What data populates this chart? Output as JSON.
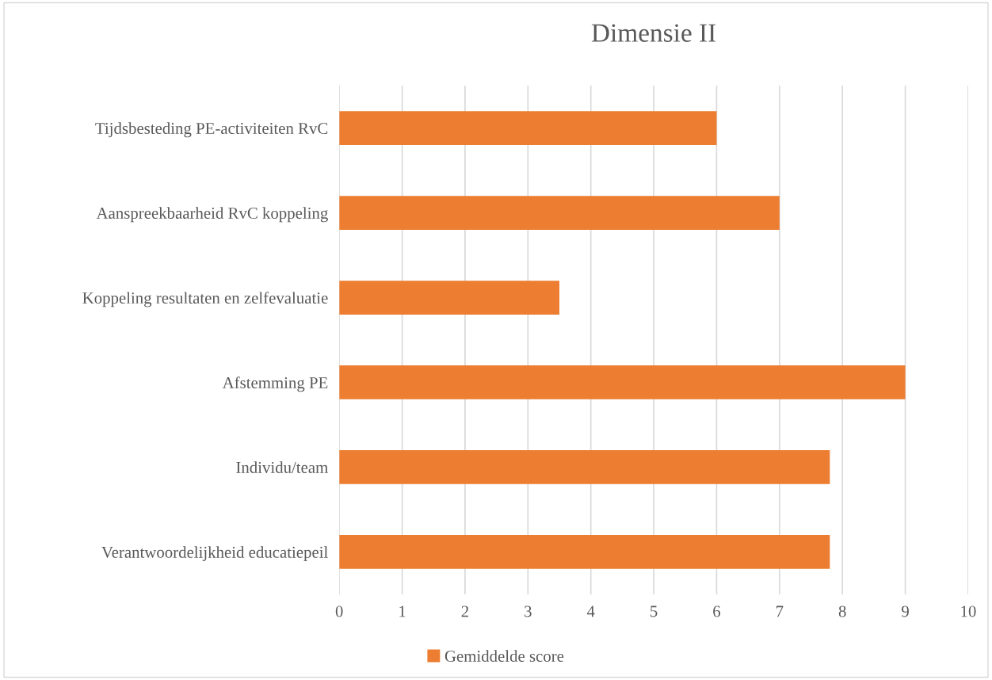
{
  "chart_data": {
    "type": "bar",
    "orientation": "horizontal",
    "title": "Dimensie II",
    "categories": [
      "Tijdsbesteding PE-activiteiten RvC",
      "Aanspreekbaarheid RvC koppeling",
      "Koppeling resultaten en zelfevaluatie",
      "Afstemming PE",
      "Individu/team",
      "Verantwoordelijkheid educatiepeil"
    ],
    "series": [
      {
        "name": "Gemiddelde score",
        "color": "#ed7d31",
        "values": [
          6,
          7,
          3.5,
          9,
          7.8,
          7.8
        ]
      }
    ],
    "xlim": [
      0,
      10
    ],
    "xticks": [
      0,
      1,
      2,
      3,
      4,
      5,
      6,
      7,
      8,
      9,
      10
    ],
    "grid": "x",
    "legend": "bottom"
  }
}
